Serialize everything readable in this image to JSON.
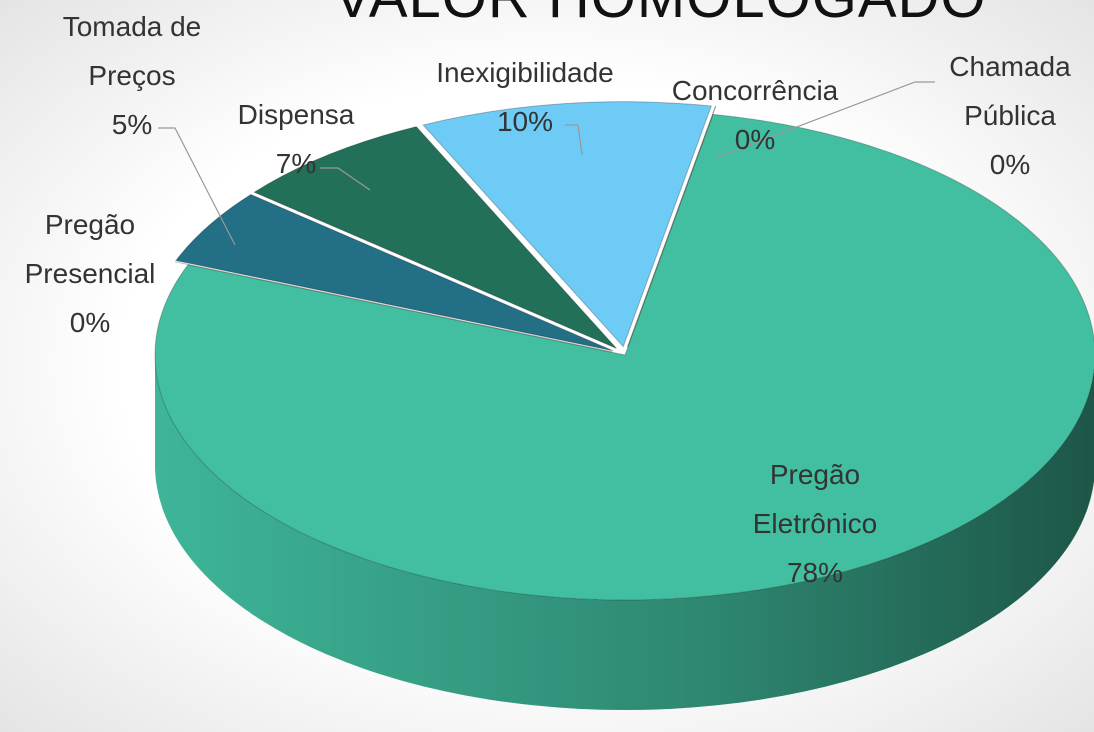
{
  "chart_data": {
    "type": "pie",
    "title": "VALOR HOMOLOGADO",
    "categories": [
      "Pregão Eletrônico",
      "Pregão Presencial",
      "Tomada de Preços",
      "Dispensa",
      "Inexigibilidade",
      "Concorrência",
      "Chamada Pública"
    ],
    "values": [
      78,
      0,
      5,
      7,
      10,
      0,
      0
    ],
    "value_labels": [
      "78%",
      "0%",
      "5%",
      "7%",
      "10%",
      "0%",
      "0%"
    ],
    "colors": [
      "#41bfa0",
      "#1a7fb5",
      "#236f86",
      "#23705a",
      "#6ecbf5",
      "#5ba0c8",
      "#8fd8f0"
    ]
  }
}
